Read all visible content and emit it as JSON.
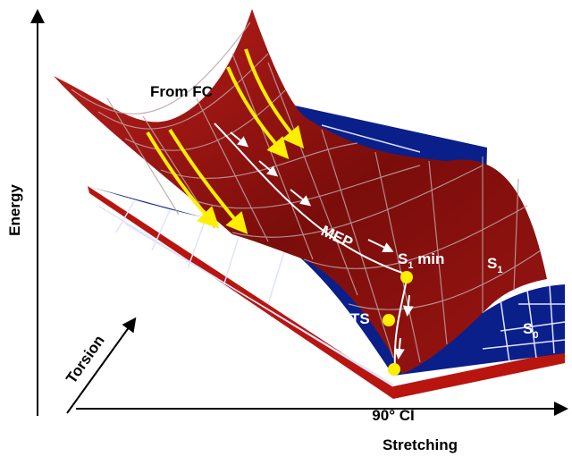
{
  "axes": {
    "energy": "Energy",
    "torsion": "Torsion",
    "stretching": "Stretching"
  },
  "labels": {
    "from_fc": "From FC",
    "mep": "MEP",
    "s1_min": {
      "main": "S",
      "sub": "1",
      "rest": " min"
    },
    "s1": {
      "main": "S",
      "sub": "1"
    },
    "s0": {
      "main": "S",
      "sub": "0"
    },
    "ts": "TS",
    "ci": "90° CI"
  }
}
